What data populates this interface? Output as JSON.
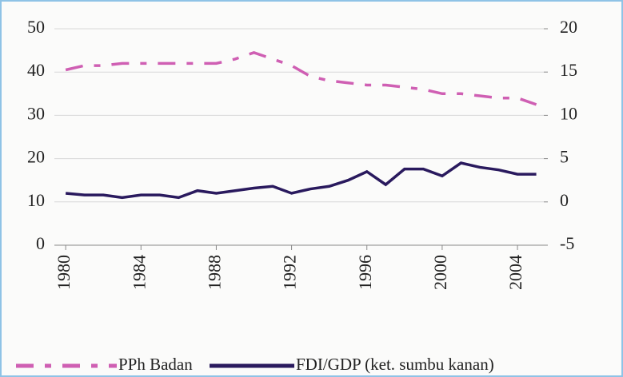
{
  "chart_data": {
    "type": "line",
    "x": [
      1980,
      1981,
      1982,
      1983,
      1984,
      1985,
      1986,
      1987,
      1988,
      1989,
      1990,
      1991,
      1992,
      1993,
      1994,
      1995,
      1996,
      1997,
      1998,
      1999,
      2000,
      2001,
      2002,
      2003,
      2004,
      2005
    ],
    "series": [
      {
        "name": "PPh Badan",
        "color": "#cf5fb3",
        "dashed": true,
        "values": [
          40.5,
          41.5,
          41.5,
          42,
          42,
          42,
          42,
          42,
          42,
          43,
          44.5,
          43,
          41.5,
          39,
          38,
          37.5,
          37,
          37,
          36.5,
          36,
          35,
          35,
          34.5,
          34,
          34,
          32.5
        ]
      },
      {
        "name": "FDI/GDP (ket. sumbu kanan)",
        "color": "#2a1a5e",
        "dashed": false,
        "axis": "y2",
        "values": [
          1,
          0.8,
          0.8,
          0.5,
          0.8,
          0.8,
          0.5,
          1.3,
          1,
          1.3,
          1.6,
          1.8,
          1,
          1.5,
          1.8,
          2.5,
          3.5,
          2,
          3.8,
          3.8,
          3,
          4.5,
          4,
          3.7,
          3.2,
          3.2
        ]
      }
    ],
    "xlim": [
      1979.4,
      2005.4
    ],
    "xticks": [
      1980,
      1984,
      1988,
      1992,
      1996,
      2000,
      2004
    ],
    "ylim": [
      0,
      50
    ],
    "yticks": [
      0,
      10,
      20,
      30,
      40,
      50
    ],
    "y2lim": [
      -5,
      20
    ],
    "y2ticks": [
      -5,
      0,
      5,
      10,
      15,
      20
    ],
    "grid": true,
    "legend": "bottom"
  }
}
